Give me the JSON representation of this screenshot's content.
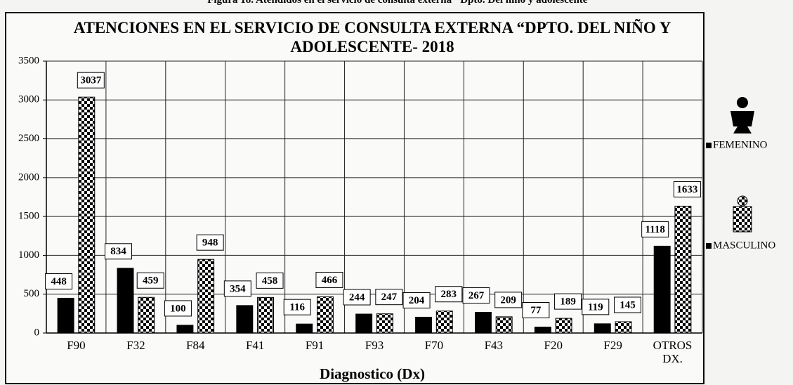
{
  "caption": "Figura 18. Atendidos en el servicio de consulta externa \"Dpto. Del niño y adolescente\"",
  "chart_data": {
    "type": "bar",
    "title": "ATENCIONES EN EL SERVICIO DE CONSULTA EXTERNA “DPTO. DEL NIÑO Y ADOLESCENTE- 2018",
    "x_label": "Diagnostico (Dx)",
    "categories": [
      "F90",
      "F32",
      "F84",
      "F41",
      "F91",
      "F93",
      "F70",
      "F43",
      "F20",
      "F29",
      "OTROS DX."
    ],
    "series": [
      {
        "name": "FEMENINO",
        "color": "#000000",
        "pattern": "solid",
        "values": [
          448,
          834,
          100,
          354,
          116,
          244,
          204,
          267,
          77,
          119,
          1118
        ]
      },
      {
        "name": "MASCULINO",
        "color": "#000000",
        "pattern": "checker",
        "values": [
          3037,
          459,
          948,
          458,
          466,
          247,
          283,
          209,
          189,
          145,
          1633
        ]
      }
    ],
    "ylim": [
      0,
      3500
    ],
    "yticks": [
      0,
      500,
      1000,
      1500,
      2000,
      2500,
      3000,
      3500
    ],
    "grid": true
  }
}
